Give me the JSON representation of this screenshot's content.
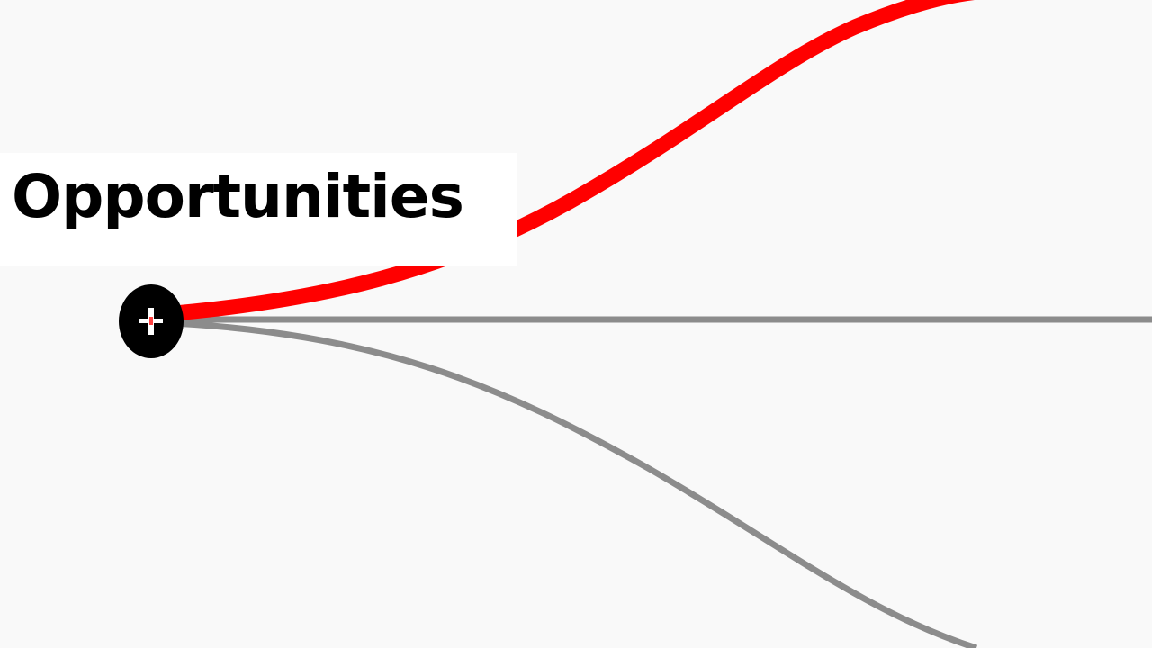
{
  "node": {
    "label": "Opportunities",
    "icon": "plus-icon"
  },
  "branches": [
    {
      "name": "top",
      "highlighted": true
    },
    {
      "name": "middle",
      "highlighted": false
    },
    {
      "name": "bottom",
      "highlighted": false
    }
  ],
  "colors": {
    "background": "#f9f9f9",
    "highlight": "#ff0000",
    "branch": "#8c8c8c",
    "node": "#000000",
    "text": "#000000"
  }
}
